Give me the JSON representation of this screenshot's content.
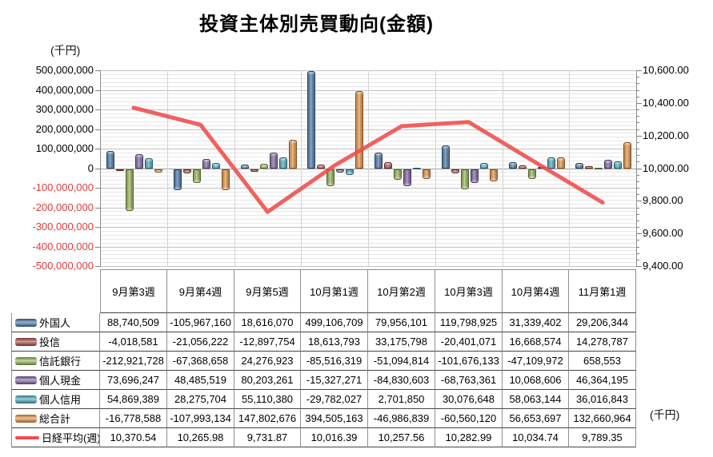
{
  "title": "投資主体別売買動向(金額)",
  "left_axis_unit": "(千円)",
  "table_unit": "(千円)",
  "chart_data": {
    "type": "bar",
    "subtype": "bar+line combo with data table legend",
    "categories": [
      "9月第3週",
      "9月第4週",
      "9月第5週",
      "10月第1週",
      "10月第2週",
      "10月第3週",
      "10月第4週",
      "11月第1週"
    ],
    "series": [
      {
        "name": "外国人",
        "type": "bar",
        "color": "#4273A8",
        "values": [
          88740509,
          -105967160,
          18616070,
          499106709,
          79956101,
          119798925,
          31339402,
          29206344
        ]
      },
      {
        "name": "投信",
        "type": "bar",
        "color": "#AA4643",
        "values": [
          -4018581,
          -21056222,
          -12897754,
          18613793,
          33175798,
          -20401071,
          16668574,
          14278787
        ]
      },
      {
        "name": "信託銀行",
        "type": "bar",
        "color": "#93B44F",
        "values": [
          -212921728,
          -67368658,
          24276923,
          -85516319,
          -51094814,
          -101676133,
          -47109972,
          658553
        ]
      },
      {
        "name": "個人現金",
        "type": "bar",
        "color": "#7D60A0",
        "values": [
          73696247,
          48485519,
          80203261,
          -15327271,
          -84830603,
          -68763361,
          10068606,
          46364195
        ]
      },
      {
        "name": "個人信用",
        "type": "bar",
        "color": "#45AAC5",
        "values": [
          54869389,
          28275704,
          55110380,
          -29782027,
          2701850,
          30076648,
          58063144,
          36016843
        ]
      },
      {
        "name": "総合計",
        "type": "bar",
        "color": "#E8913D",
        "values": [
          -16778588,
          -107993134,
          147802676,
          394505163,
          -46986839,
          -60560120,
          56653697,
          132660964
        ]
      },
      {
        "name": "日経平均(週)",
        "type": "line",
        "axis": "right",
        "color": "#F04B4B",
        "values": [
          10370.54,
          10265.98,
          9731.87,
          10016.39,
          10257.56,
          10282.99,
          10034.74,
          9789.35
        ]
      }
    ],
    "left_axis": {
      "min": -500000000,
      "max": 500000000,
      "major": 100000000,
      "minor": 20000000,
      "unit": "(千円)",
      "negative_label_color": "#e03a3a"
    },
    "right_axis": {
      "min": 9400,
      "max": 10600,
      "major": 200,
      "label_decimals": 2
    },
    "grid": "major+minor horizontal, vertical category separators",
    "legend_position": "data table below chart"
  }
}
